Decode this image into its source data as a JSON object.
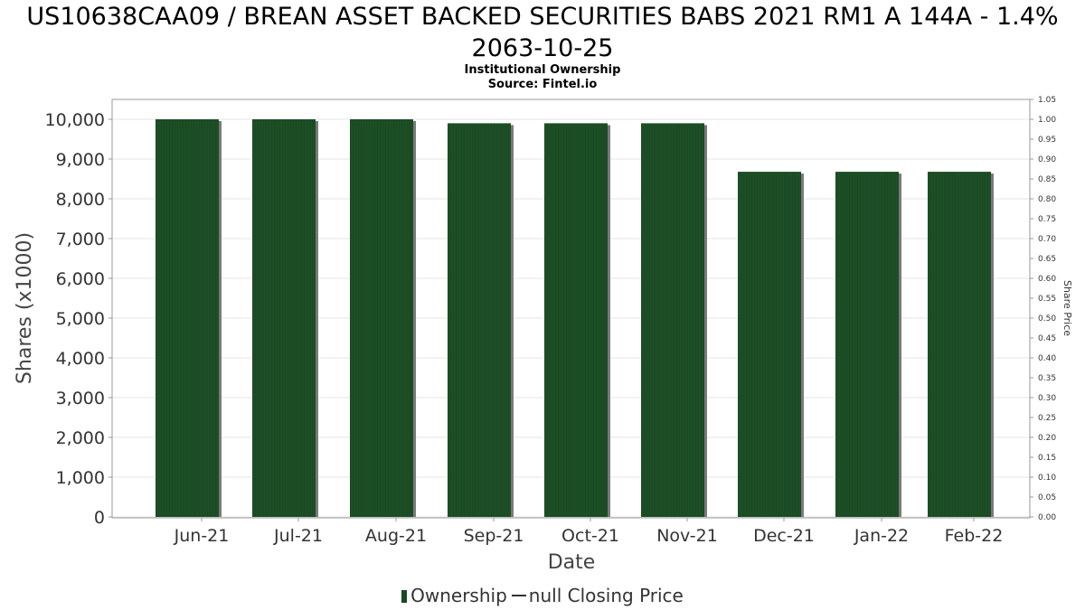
{
  "title": {
    "line1": "US10638CAA09 / BREAN ASSET BACKED SECURITIES BABS 2021 RM1 A 144A - 1.4%",
    "line2": "2063-10-25",
    "subtitle1": "Institutional Ownership",
    "subtitle2": "Source: Fintel.io"
  },
  "colors": {
    "bar": "#1a4a23",
    "bar_shadow": "#7a7a7a",
    "grid": "#e6e6e6"
  },
  "chart_data": {
    "type": "bar",
    "categories": [
      "Jun-21",
      "Jul-21",
      "Aug-21",
      "Sep-21",
      "Oct-21",
      "Nov-21",
      "Dec-21",
      "Jan-22",
      "Feb-22"
    ],
    "series": [
      {
        "name": "Ownership",
        "values": [
          10000,
          10000,
          10000,
          9900,
          9900,
          9900,
          8680,
          8680,
          8680
        ]
      }
    ],
    "xlabel": "Date",
    "ylabel": "Shares (x1000)",
    "y2label": "Share Price",
    "ylim": [
      0,
      10400
    ],
    "yticks": [
      "0",
      "1,000",
      "2,000",
      "3,000",
      "4,000",
      "5,000",
      "6,000",
      "7,000",
      "8,000",
      "9,000",
      "10,000"
    ],
    "y2lim": [
      0,
      1.05
    ],
    "y2ticks": [
      "0.00",
      "0.05",
      "0.10",
      "0.15",
      "0.20",
      "0.25",
      "0.30",
      "0.35",
      "0.40",
      "0.45",
      "0.50",
      "0.55",
      "0.60",
      "0.65",
      "0.70",
      "0.75",
      "0.80",
      "0.85",
      "0.90",
      "0.95",
      "1.00",
      "1.05"
    ],
    "grid": true,
    "legend": {
      "position": "bottom",
      "items": [
        "Ownership",
        "null Closing Price"
      ]
    }
  }
}
